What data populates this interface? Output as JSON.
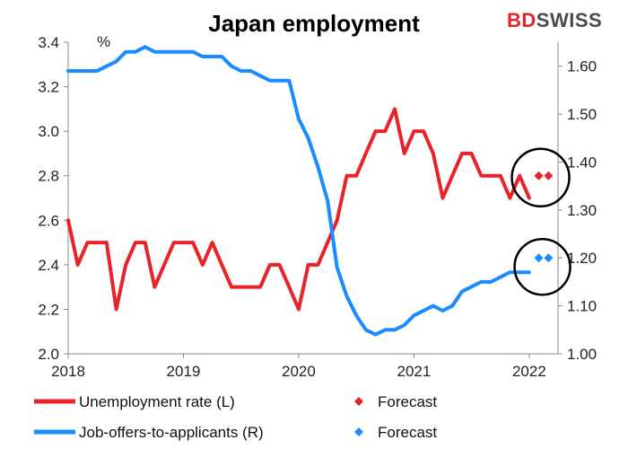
{
  "header": {
    "title": "Japan employment"
  },
  "brand": {
    "part1": "BD",
    "part2": "SWISS",
    "color_red": "#e0262b",
    "color_dark": "#4a4a4a"
  },
  "chart_data": {
    "type": "line",
    "title": "Japan employment",
    "left_axis": {
      "unit": "%",
      "ylim": [
        2.0,
        3.4
      ],
      "ticks": [
        "2.0",
        "2.2",
        "2.4",
        "2.6",
        "2.8",
        "3.0",
        "3.2",
        "3.4"
      ]
    },
    "right_axis": {
      "ylim": [
        1.0,
        1.65
      ],
      "ticks": [
        "1.00",
        "1.10",
        "1.20",
        "1.30",
        "1.40",
        "1.50",
        "1.60"
      ]
    },
    "x_axis": {
      "ticks": [
        "2018",
        "2019",
        "2020",
        "2021",
        "2022"
      ],
      "range": [
        2018.0,
        2022.25
      ]
    },
    "grid": false,
    "legend_position": "bottom",
    "series": [
      {
        "name": "Unemployment rate (L)",
        "axis": "left",
        "color": "#e8232a",
        "x": [
          2018.0,
          2018.083,
          2018.167,
          2018.25,
          2018.333,
          2018.417,
          2018.5,
          2018.583,
          2018.667,
          2018.75,
          2018.833,
          2018.917,
          2019.0,
          2019.083,
          2019.167,
          2019.25,
          2019.333,
          2019.417,
          2019.5,
          2019.583,
          2019.667,
          2019.75,
          2019.833,
          2019.917,
          2020.0,
          2020.083,
          2020.167,
          2020.25,
          2020.333,
          2020.417,
          2020.5,
          2020.583,
          2020.667,
          2020.75,
          2020.833,
          2020.917,
          2021.0,
          2021.083,
          2021.167,
          2021.25,
          2021.333,
          2021.417,
          2021.5,
          2021.583,
          2021.667,
          2021.75,
          2021.833,
          2021.917,
          2022.0
        ],
        "values": [
          2.6,
          2.4,
          2.5,
          2.5,
          2.5,
          2.2,
          2.4,
          2.5,
          2.5,
          2.3,
          2.4,
          2.5,
          2.5,
          2.5,
          2.4,
          2.5,
          2.4,
          2.3,
          2.3,
          2.3,
          2.3,
          2.4,
          2.4,
          2.3,
          2.2,
          2.4,
          2.4,
          2.5,
          2.6,
          2.8,
          2.8,
          2.9,
          3.0,
          3.0,
          3.1,
          2.9,
          3.0,
          3.0,
          2.9,
          2.7,
          2.8,
          2.9,
          2.9,
          2.8,
          2.8,
          2.8,
          2.7,
          2.8,
          2.7
        ]
      },
      {
        "name": "Forecast",
        "axis": "left",
        "color": "#e8232a",
        "marker": "diamond",
        "x": [
          2022.083,
          2022.167
        ],
        "values": [
          2.8,
          2.8
        ]
      },
      {
        "name": "Job-offers-to-applicants (R)",
        "axis": "right",
        "color": "#1a8cff",
        "x": [
          2018.0,
          2018.083,
          2018.167,
          2018.25,
          2018.333,
          2018.417,
          2018.5,
          2018.583,
          2018.667,
          2018.75,
          2018.833,
          2018.917,
          2019.0,
          2019.083,
          2019.167,
          2019.25,
          2019.333,
          2019.417,
          2019.5,
          2019.583,
          2019.667,
          2019.75,
          2019.833,
          2019.917,
          2020.0,
          2020.083,
          2020.167,
          2020.25,
          2020.333,
          2020.417,
          2020.5,
          2020.583,
          2020.667,
          2020.75,
          2020.833,
          2020.917,
          2021.0,
          2021.083,
          2021.167,
          2021.25,
          2021.333,
          2021.417,
          2021.5,
          2021.583,
          2021.667,
          2021.75,
          2021.833,
          2021.917,
          2022.0
        ],
        "values": [
          1.59,
          1.59,
          1.59,
          1.59,
          1.6,
          1.61,
          1.63,
          1.63,
          1.64,
          1.63,
          1.63,
          1.63,
          1.63,
          1.63,
          1.62,
          1.62,
          1.62,
          1.6,
          1.59,
          1.59,
          1.58,
          1.57,
          1.57,
          1.57,
          1.49,
          1.45,
          1.39,
          1.32,
          1.18,
          1.12,
          1.08,
          1.05,
          1.04,
          1.05,
          1.05,
          1.06,
          1.08,
          1.09,
          1.1,
          1.09,
          1.1,
          1.13,
          1.14,
          1.15,
          1.15,
          1.16,
          1.17,
          1.17,
          1.17
        ]
      },
      {
        "name": "Forecast",
        "axis": "right",
        "color": "#1a8cff",
        "marker": "diamond",
        "x": [
          2022.083,
          2022.167
        ],
        "values": [
          1.2,
          1.2
        ]
      }
    ]
  }
}
